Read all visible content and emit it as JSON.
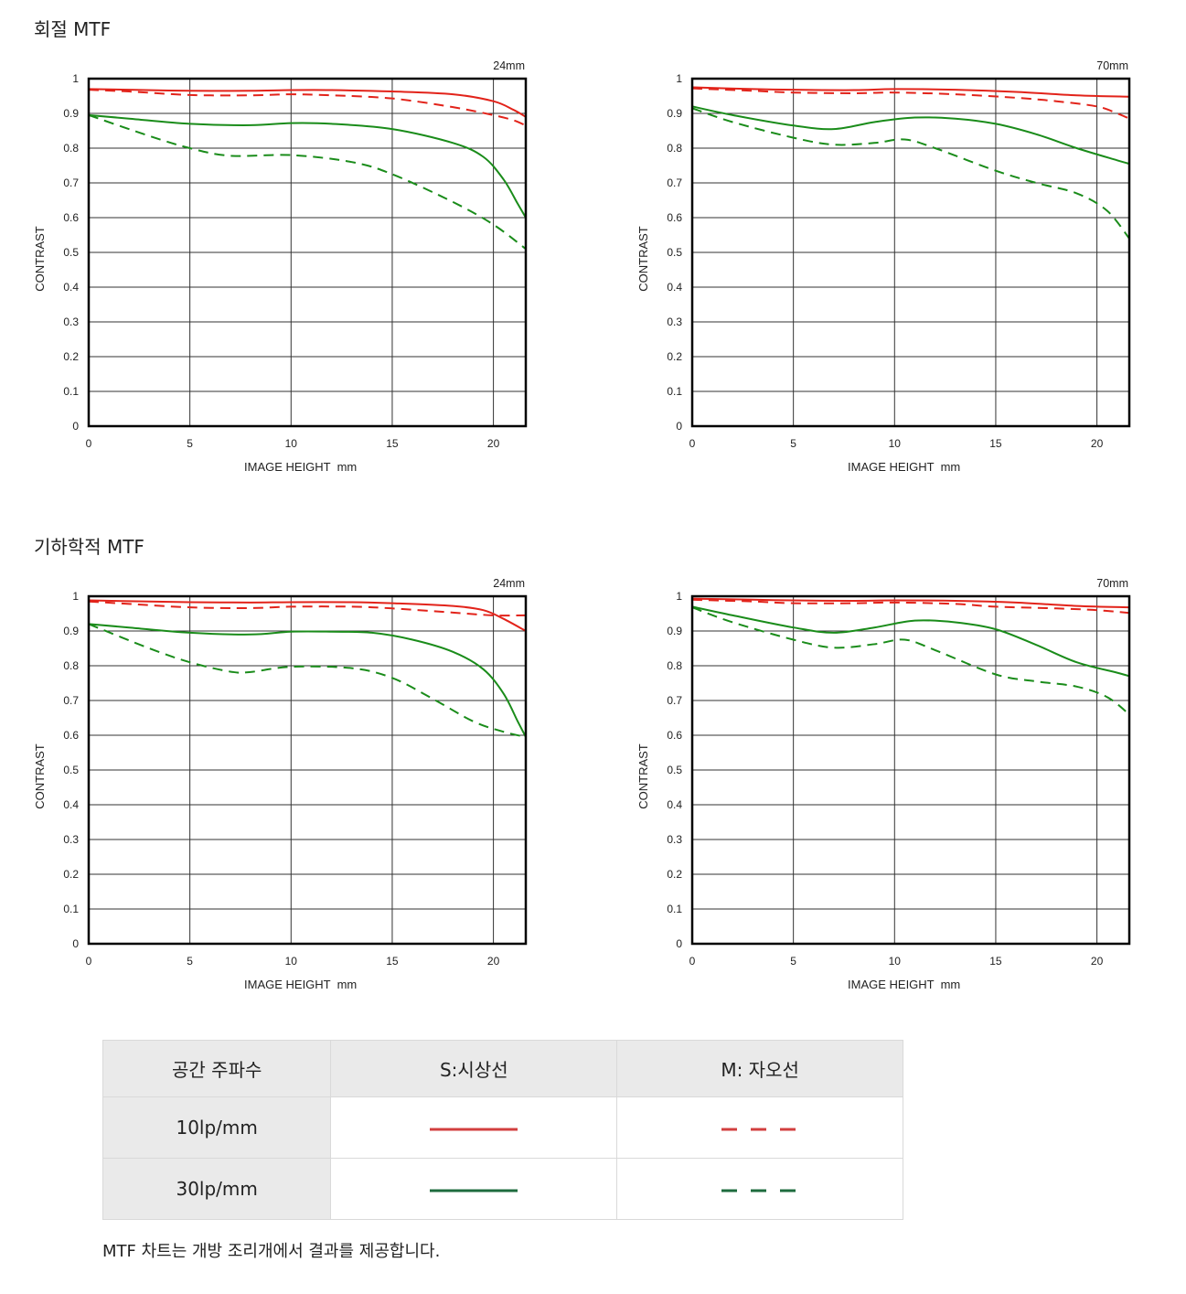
{
  "sections": [
    {
      "title": "회절 MTF"
    },
    {
      "title": "기하학적 MTF"
    }
  ],
  "colors": {
    "s10": "#e2231a",
    "m10": "#e2231a",
    "s30": "#1a8c1a",
    "m30": "#1a8c1a",
    "legend_red": "#d23f3f",
    "legend_green": "#1e6b3e"
  },
  "chart_data": [
    {
      "type": "line",
      "section": "회절 MTF",
      "focal": "24mm",
      "xlabel": "IMAGE HEIGHT  mm",
      "ylabel": "CONTRAST",
      "xlim": [
        0,
        21.6
      ],
      "ylim": [
        0,
        1
      ],
      "xticks": [
        "0",
        "5",
        "10",
        "15",
        "20"
      ],
      "yticks": [
        "0",
        "0.1",
        "0.2",
        "0.3",
        "0.4",
        "0.5",
        "0.6",
        "0.7",
        "0.8",
        "0.9",
        "1"
      ],
      "grid": true,
      "series": [
        {
          "key": "s10",
          "x": [
            0,
            2,
            5,
            8,
            10,
            12,
            15,
            18,
            20,
            21,
            21.6
          ],
          "y": [
            0.97,
            0.968,
            0.965,
            0.965,
            0.967,
            0.967,
            0.963,
            0.955,
            0.935,
            0.91,
            0.89
          ]
        },
        {
          "key": "m10",
          "x": [
            0,
            2,
            5,
            8,
            10,
            12,
            15,
            18,
            20,
            21,
            21.6
          ],
          "y": [
            0.968,
            0.963,
            0.953,
            0.952,
            0.955,
            0.952,
            0.943,
            0.918,
            0.895,
            0.88,
            0.865
          ]
        },
        {
          "key": "s30",
          "x": [
            0,
            2,
            5,
            8,
            10,
            12,
            15,
            18,
            19.5,
            20.5,
            21.2,
            21.6
          ],
          "y": [
            0.895,
            0.885,
            0.87,
            0.866,
            0.872,
            0.87,
            0.855,
            0.815,
            0.775,
            0.71,
            0.64,
            0.6
          ]
        },
        {
          "key": "m30",
          "x": [
            0,
            3,
            5,
            7,
            10,
            13,
            15,
            18,
            20,
            21.6
          ],
          "y": [
            0.895,
            0.835,
            0.8,
            0.778,
            0.78,
            0.76,
            0.725,
            0.645,
            0.58,
            0.51
          ]
        }
      ]
    },
    {
      "type": "line",
      "section": "회절 MTF",
      "focal": "70mm",
      "xlabel": "IMAGE HEIGHT  mm",
      "ylabel": "CONTRAST",
      "xlim": [
        0,
        21.6
      ],
      "ylim": [
        0,
        1
      ],
      "xticks": [
        "0",
        "5",
        "10",
        "15",
        "20"
      ],
      "yticks": [
        "0",
        "0.1",
        "0.2",
        "0.3",
        "0.4",
        "0.5",
        "0.6",
        "0.7",
        "0.8",
        "0.9",
        "1"
      ],
      "grid": true,
      "series": [
        {
          "key": "s10",
          "x": [
            0,
            3,
            5,
            8,
            10,
            13,
            16,
            19,
            21.6
          ],
          "y": [
            0.975,
            0.97,
            0.968,
            0.967,
            0.97,
            0.968,
            0.962,
            0.952,
            0.948
          ]
        },
        {
          "key": "m10",
          "x": [
            0,
            3,
            5,
            8,
            10,
            13,
            16,
            18,
            20,
            21,
            21.6
          ],
          "y": [
            0.972,
            0.965,
            0.96,
            0.958,
            0.96,
            0.955,
            0.945,
            0.935,
            0.92,
            0.9,
            0.885
          ]
        },
        {
          "key": "s30",
          "x": [
            0,
            2,
            5,
            7,
            9,
            11,
            13,
            15,
            17,
            19,
            21,
            21.6
          ],
          "y": [
            0.92,
            0.895,
            0.865,
            0.855,
            0.875,
            0.888,
            0.885,
            0.87,
            0.84,
            0.8,
            0.765,
            0.755
          ]
        },
        {
          "key": "m30",
          "x": [
            0,
            2,
            5,
            7,
            9,
            10.5,
            12,
            15,
            17,
            19,
            20.5,
            21.6
          ],
          "y": [
            0.915,
            0.875,
            0.83,
            0.81,
            0.815,
            0.825,
            0.8,
            0.735,
            0.7,
            0.67,
            0.62,
            0.54
          ]
        }
      ]
    },
    {
      "type": "line",
      "section": "기하학적 MTF",
      "focal": "24mm",
      "xlabel": "IMAGE HEIGHT  mm",
      "ylabel": "CONTRAST",
      "xlim": [
        0,
        21.6
      ],
      "ylim": [
        0,
        1
      ],
      "xticks": [
        "0",
        "5",
        "10",
        "15",
        "20"
      ],
      "yticks": [
        "0",
        "0.1",
        "0.2",
        "0.3",
        "0.4",
        "0.5",
        "0.6",
        "0.7",
        "0.8",
        "0.9",
        "1"
      ],
      "grid": true,
      "series": [
        {
          "key": "s10",
          "x": [
            0,
            3,
            5,
            8,
            10,
            13,
            15,
            18,
            19.5,
            20.5,
            21.6
          ],
          "y": [
            0.988,
            0.985,
            0.983,
            0.982,
            0.983,
            0.983,
            0.98,
            0.972,
            0.96,
            0.935,
            0.9
          ]
        },
        {
          "key": "m10",
          "x": [
            0,
            2,
            5,
            8,
            10,
            13,
            15,
            18,
            20,
            21.6
          ],
          "y": [
            0.985,
            0.978,
            0.968,
            0.966,
            0.97,
            0.97,
            0.965,
            0.953,
            0.945,
            0.945
          ]
        },
        {
          "key": "s30",
          "x": [
            0,
            2,
            5,
            8,
            10,
            12,
            14,
            16,
            18,
            19.5,
            20.5,
            21.2,
            21.6
          ],
          "y": [
            0.92,
            0.91,
            0.895,
            0.89,
            0.898,
            0.898,
            0.895,
            0.875,
            0.84,
            0.79,
            0.72,
            0.64,
            0.595
          ]
        },
        {
          "key": "m30",
          "x": [
            0,
            3,
            5,
            7,
            8,
            10,
            13,
            15,
            17,
            19,
            20.5,
            21.6
          ],
          "y": [
            0.92,
            0.85,
            0.81,
            0.783,
            0.782,
            0.797,
            0.793,
            0.765,
            0.705,
            0.64,
            0.61,
            0.595
          ]
        }
      ]
    },
    {
      "type": "line",
      "section": "기하학적 MTF",
      "focal": "70mm",
      "xlabel": "IMAGE HEIGHT  mm",
      "ylabel": "CONTRAST",
      "xlim": [
        0,
        21.6
      ],
      "ylim": [
        0,
        1
      ],
      "xticks": [
        "0",
        "5",
        "10",
        "15",
        "20"
      ],
      "yticks": [
        "0",
        "0.1",
        "0.2",
        "0.3",
        "0.4",
        "0.5",
        "0.6",
        "0.7",
        "0.8",
        "0.9",
        "1"
      ],
      "grid": true,
      "series": [
        {
          "key": "s10",
          "x": [
            0,
            3,
            5,
            8,
            10,
            13,
            16,
            19,
            21.6
          ],
          "y": [
            0.993,
            0.99,
            0.988,
            0.987,
            0.988,
            0.987,
            0.982,
            0.972,
            0.968
          ]
        },
        {
          "key": "m10",
          "x": [
            0,
            3,
            5,
            8,
            10,
            13,
            15,
            18,
            20,
            21.6
          ],
          "y": [
            0.99,
            0.985,
            0.98,
            0.98,
            0.982,
            0.978,
            0.97,
            0.965,
            0.96,
            0.952
          ]
        },
        {
          "key": "s30",
          "x": [
            0,
            2,
            5,
            7,
            9,
            11,
            13,
            15,
            17,
            19,
            21,
            21.6
          ],
          "y": [
            0.97,
            0.945,
            0.91,
            0.895,
            0.91,
            0.93,
            0.925,
            0.905,
            0.86,
            0.81,
            0.78,
            0.77
          ]
        },
        {
          "key": "m30",
          "x": [
            0,
            2,
            5,
            7,
            9,
            10.5,
            12,
            15,
            17,
            19,
            20.5,
            21.6
          ],
          "y": [
            0.968,
            0.925,
            0.875,
            0.852,
            0.862,
            0.875,
            0.845,
            0.775,
            0.755,
            0.74,
            0.71,
            0.66
          ]
        }
      ]
    }
  ],
  "legend": {
    "headers": [
      "공간 주파수",
      "S:시상선",
      "M: 자오선"
    ],
    "rows": [
      {
        "freq": "10lp/mm",
        "s_color": "legend_red",
        "m_color": "legend_red"
      },
      {
        "freq": "30lp/mm",
        "s_color": "legend_green",
        "m_color": "legend_green"
      }
    ]
  },
  "note": "MTF 차트는 개방 조리개에서 결과를 제공합니다."
}
